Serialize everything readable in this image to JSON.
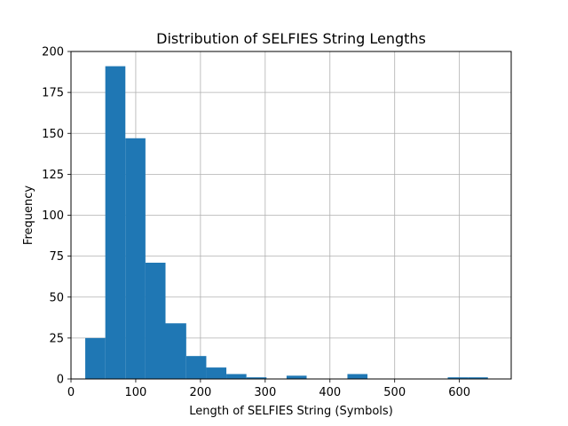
{
  "chart_data": {
    "type": "bar",
    "title": "Distribution of SELFIES String Lengths",
    "xlabel": "Length of SELFIES String (Symbols)",
    "ylabel": "Frequency",
    "xlim": [
      0,
      680
    ],
    "ylim": [
      0,
      200
    ],
    "xticks": [
      0,
      100,
      200,
      300,
      400,
      500,
      600
    ],
    "yticks": [
      0,
      25,
      50,
      75,
      100,
      125,
      150,
      175,
      200
    ],
    "grid": true,
    "bar_color": "#1f77b4",
    "bins": [
      {
        "x0": 22,
        "x1": 53,
        "count": 25
      },
      {
        "x0": 53,
        "x1": 84,
        "count": 191
      },
      {
        "x0": 84,
        "x1": 115,
        "count": 147
      },
      {
        "x0": 115,
        "x1": 146,
        "count": 71
      },
      {
        "x0": 146,
        "x1": 178,
        "count": 34
      },
      {
        "x0": 178,
        "x1": 209,
        "count": 14
      },
      {
        "x0": 209,
        "x1": 240,
        "count": 7
      },
      {
        "x0": 240,
        "x1": 271,
        "count": 3
      },
      {
        "x0": 271,
        "x1": 302,
        "count": 1
      },
      {
        "x0": 302,
        "x1": 333,
        "count": 0
      },
      {
        "x0": 333,
        "x1": 364,
        "count": 2
      },
      {
        "x0": 364,
        "x1": 395,
        "count": 0
      },
      {
        "x0": 395,
        "x1": 427,
        "count": 0
      },
      {
        "x0": 427,
        "x1": 458,
        "count": 3
      },
      {
        "x0": 458,
        "x1": 489,
        "count": 0
      },
      {
        "x0": 489,
        "x1": 520,
        "count": 0
      },
      {
        "x0": 520,
        "x1": 551,
        "count": 0
      },
      {
        "x0": 551,
        "x1": 582,
        "count": 0
      },
      {
        "x0": 582,
        "x1": 613,
        "count": 1
      },
      {
        "x0": 613,
        "x1": 644,
        "count": 1
      }
    ]
  }
}
